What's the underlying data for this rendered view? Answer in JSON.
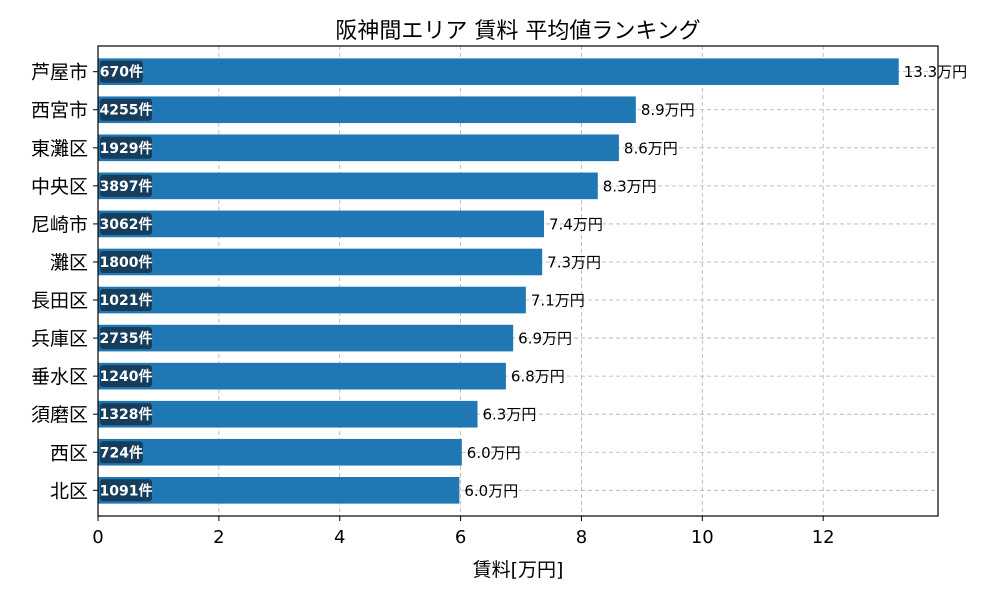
{
  "chart_data": {
    "type": "bar",
    "orientation": "horizontal",
    "title": "阪神間エリア 賃料 平均値ランキング",
    "xlabel": "賃料[万円]",
    "ylabel": "",
    "xlim": [
      0,
      13.9
    ],
    "xticks": [
      0,
      2,
      4,
      6,
      8,
      10,
      12
    ],
    "grid": true,
    "bar_color": "#1f77b4",
    "count_badge_color": "#163d5c",
    "categories": [
      "芦屋市",
      "西宮市",
      "東灘区",
      "中央区",
      "尼崎市",
      "灘区",
      "長田区",
      "兵庫区",
      "垂水区",
      "須磨区",
      "西区",
      "北区"
    ],
    "values": [
      13.25,
      8.9,
      8.62,
      8.27,
      7.38,
      7.35,
      7.08,
      6.87,
      6.75,
      6.28,
      6.02,
      5.98
    ],
    "value_labels": [
      "13.3万円",
      "8.9万円",
      "8.6万円",
      "8.3万円",
      "7.4万円",
      "7.3万円",
      "7.1万円",
      "6.9万円",
      "6.8万円",
      "6.3万円",
      "6.0万円",
      "6.0万円"
    ],
    "count_labels": [
      "670件",
      "4255件",
      "1929件",
      "3897件",
      "3062件",
      "1800件",
      "1021件",
      "2735件",
      "1240件",
      "1328件",
      "724件",
      "1091件"
    ]
  }
}
